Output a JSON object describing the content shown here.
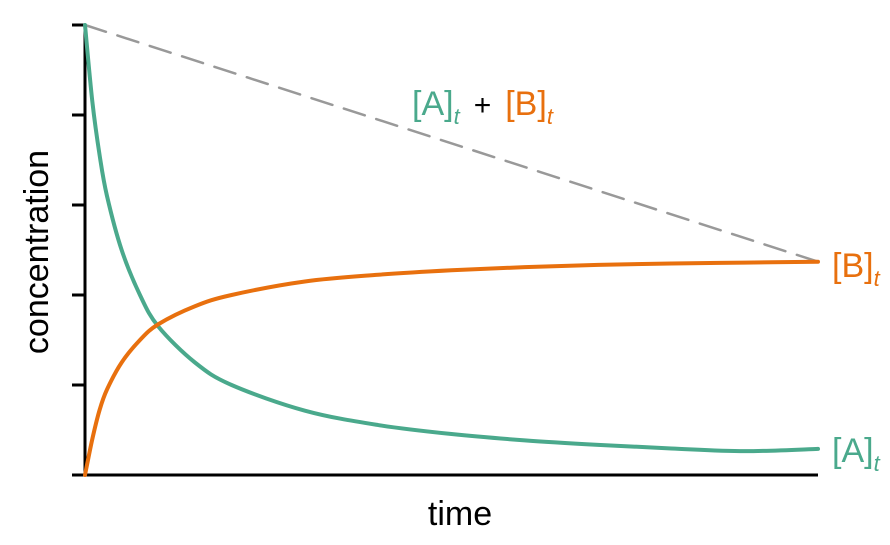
{
  "chart_data": {
    "type": "line",
    "xlabel": "time",
    "ylabel": "concentration",
    "xlim": [
      0,
      10
    ],
    "ylim": [
      0,
      1
    ],
    "yticks": [
      0,
      0.2,
      0.4,
      0.6,
      0.8,
      1.0
    ],
    "grid": false,
    "series": [
      {
        "name": "[A]",
        "subscript": "t",
        "color": "#4aa98c",
        "x": [
          0,
          0.1,
          0.2,
          0.3,
          0.5,
          0.75,
          1.0,
          1.5,
          2.0,
          3.0,
          4.0,
          5.0,
          6.0,
          7.0,
          8.0,
          9.0,
          10.0
        ],
        "y": [
          1.0,
          0.83,
          0.71,
          0.62,
          0.5,
          0.4,
          0.33,
          0.25,
          0.2,
          0.143,
          0.111,
          0.091,
          0.077,
          0.067,
          0.059,
          0.053,
          0.058
        ]
      },
      {
        "name": "[B]",
        "subscript": "t",
        "color": "#e8700e",
        "x": [
          0,
          0.1,
          0.2,
          0.3,
          0.5,
          0.75,
          1.0,
          1.5,
          2.0,
          3.0,
          4.0,
          5.0,
          6.0,
          7.0,
          8.0,
          9.0,
          10.0
        ],
        "y": [
          0.0,
          0.08,
          0.145,
          0.19,
          0.25,
          0.3,
          0.335,
          0.375,
          0.4,
          0.43,
          0.445,
          0.455,
          0.462,
          0.467,
          0.47,
          0.472,
          0.474
        ]
      },
      {
        "name": "[A] + [B]",
        "style": "dashed",
        "color": "#999999",
        "x": [
          0,
          10
        ],
        "y": [
          1.0,
          0.474
        ]
      }
    ],
    "annotation": {
      "part_a": "[A]",
      "plus": "+",
      "part_b": "[B]",
      "subscript": "t"
    }
  }
}
